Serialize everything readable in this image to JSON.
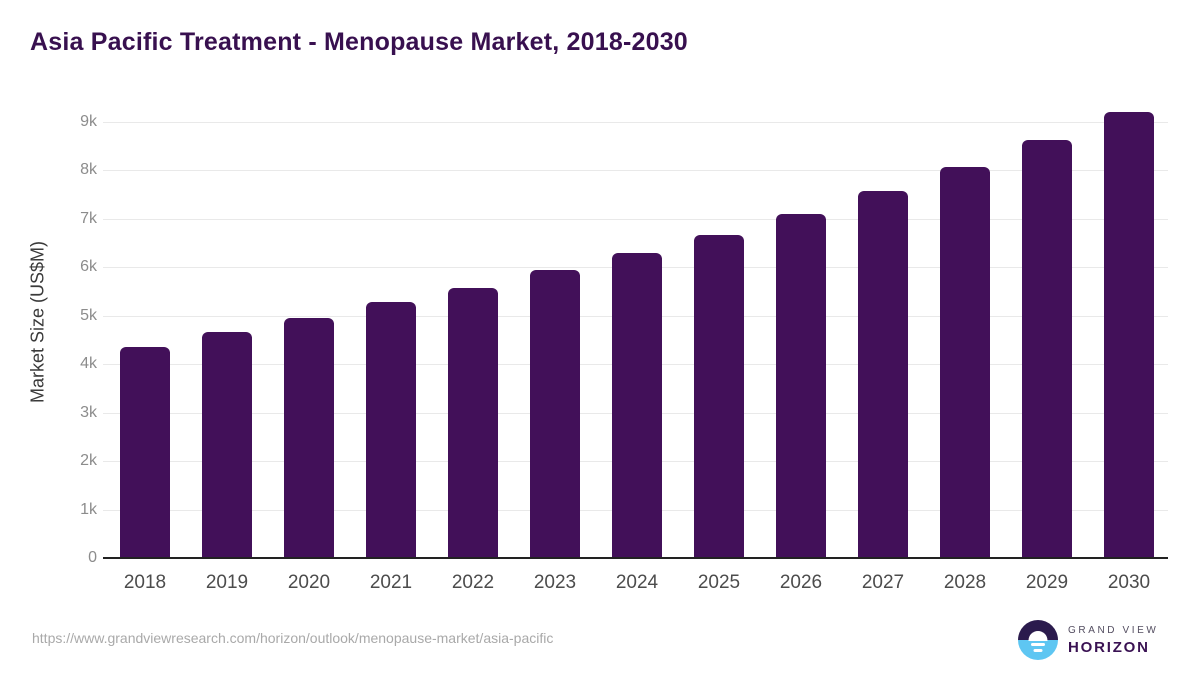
{
  "page": {
    "source_url": "https://www.grandviewresearch.com/horizon/outlook/menopause-market/asia-pacific"
  },
  "chart_data": {
    "type": "bar",
    "title": "Asia Pacific Treatment - Menopause Market, 2018-2030",
    "xlabel": "",
    "ylabel": "Market Size (US$M)",
    "categories": [
      "2018",
      "2019",
      "2020",
      "2021",
      "2022",
      "2023",
      "2024",
      "2025",
      "2026",
      "2027",
      "2028",
      "2029",
      "2030"
    ],
    "values": [
      4350,
      4660,
      4960,
      5270,
      5570,
      5930,
      6300,
      6670,
      7100,
      7570,
      8070,
      8620,
      9200
    ],
    "ylim": [
      0,
      9500
    ],
    "yticks": [
      {
        "value": 0,
        "label": "0"
      },
      {
        "value": 1000,
        "label": "1k"
      },
      {
        "value": 2000,
        "label": "2k"
      },
      {
        "value": 3000,
        "label": "3k"
      },
      {
        "value": 4000,
        "label": "4k"
      },
      {
        "value": 5000,
        "label": "5k"
      },
      {
        "value": 6000,
        "label": "6k"
      },
      {
        "value": 7000,
        "label": "7k"
      },
      {
        "value": 8000,
        "label": "8k"
      },
      {
        "value": 9000,
        "label": "9k"
      }
    ],
    "grid": true,
    "legend": false
  },
  "branding": {
    "logo_line1": "GRAND VIEW",
    "logo_line2": "HORIZON",
    "sun_icon": "horizon-sun-icon"
  },
  "colors": {
    "title": "#38104f",
    "bar": "#421059",
    "grid": "#e9e9e9",
    "axis": "#222222",
    "ytick": "#8c8c8c",
    "xlabel": "#4c4c4c",
    "url": "#a9a9a9",
    "logo_top": "#2b1b4d",
    "logo_bottom": "#5ec6f2"
  }
}
